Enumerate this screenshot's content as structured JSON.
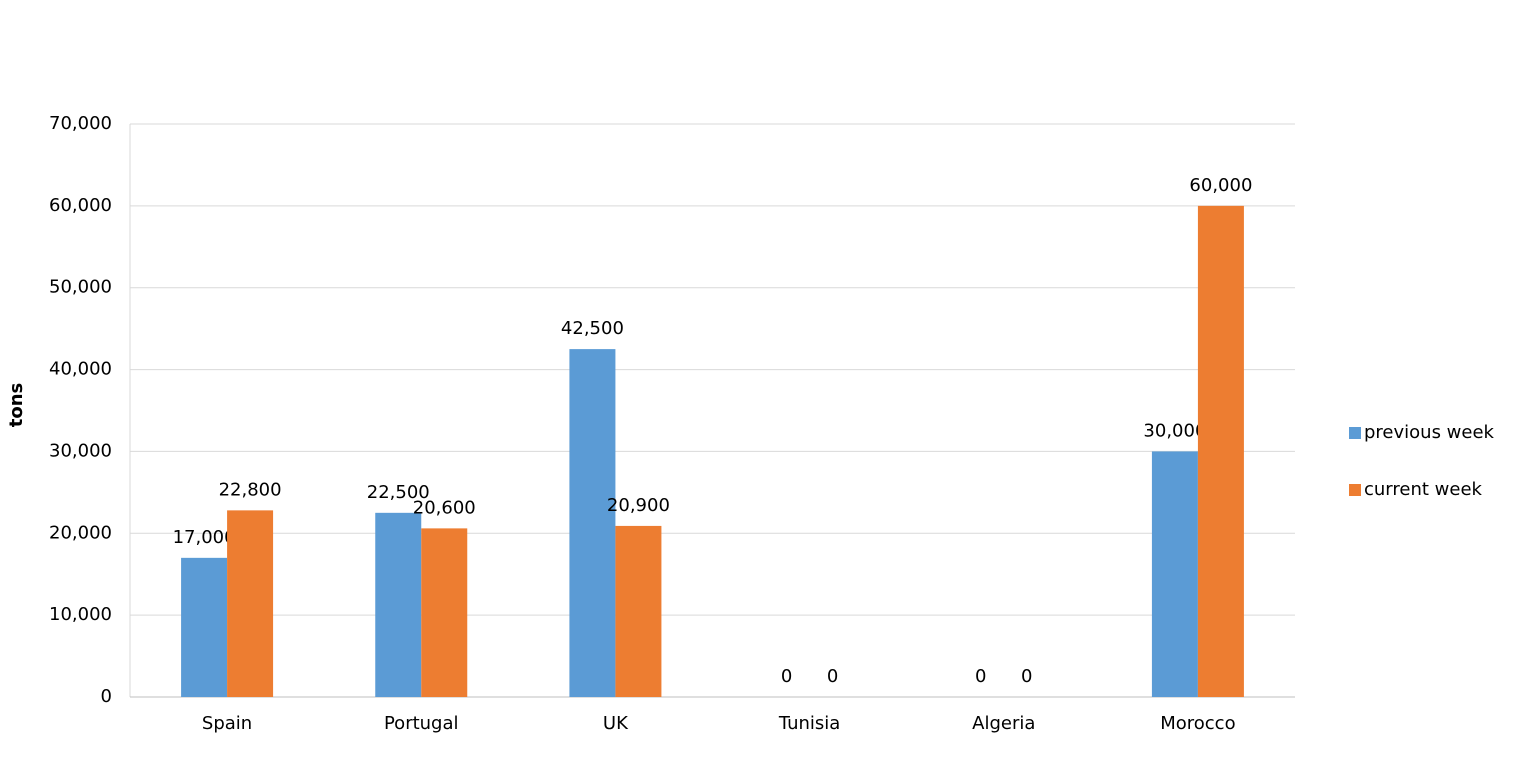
{
  "chart_data": {
    "type": "bar",
    "y_label": "tons",
    "categories": [
      "Spain",
      "Portugal",
      "UK",
      "Tunisia",
      "Algeria",
      "Morocco"
    ],
    "series": [
      {
        "name": "previous week",
        "color": "#5b9bd5",
        "values": [
          17000,
          22500,
          42500,
          0,
          0,
          30000
        ],
        "value_labels": [
          "17,000",
          "22,500",
          "42,500",
          "0",
          "0",
          "30,000"
        ]
      },
      {
        "name": "current week",
        "color": "#ed7d31",
        "values": [
          22800,
          20600,
          20900,
          0,
          0,
          60000
        ],
        "value_labels": [
          "22,800",
          "20,600",
          "20,900",
          "0",
          "0",
          "60,000"
        ]
      }
    ],
    "ylim": [
      0,
      70000
    ],
    "yticks": [
      0,
      {
        "value": 10000,
        "label": "10,000"
      },
      {
        "value": 20000,
        "label": "20,000"
      },
      {
        "value": 30000,
        "label": "30,000"
      },
      {
        "value": 40000,
        "label": "40,000"
      },
      {
        "value": 50000,
        "label": "50,000"
      },
      {
        "value": 60000,
        "label": "60,000"
      },
      {
        "value": 70000,
        "label": "70,000"
      }
    ],
    "grid": true,
    "legend": "right"
  }
}
